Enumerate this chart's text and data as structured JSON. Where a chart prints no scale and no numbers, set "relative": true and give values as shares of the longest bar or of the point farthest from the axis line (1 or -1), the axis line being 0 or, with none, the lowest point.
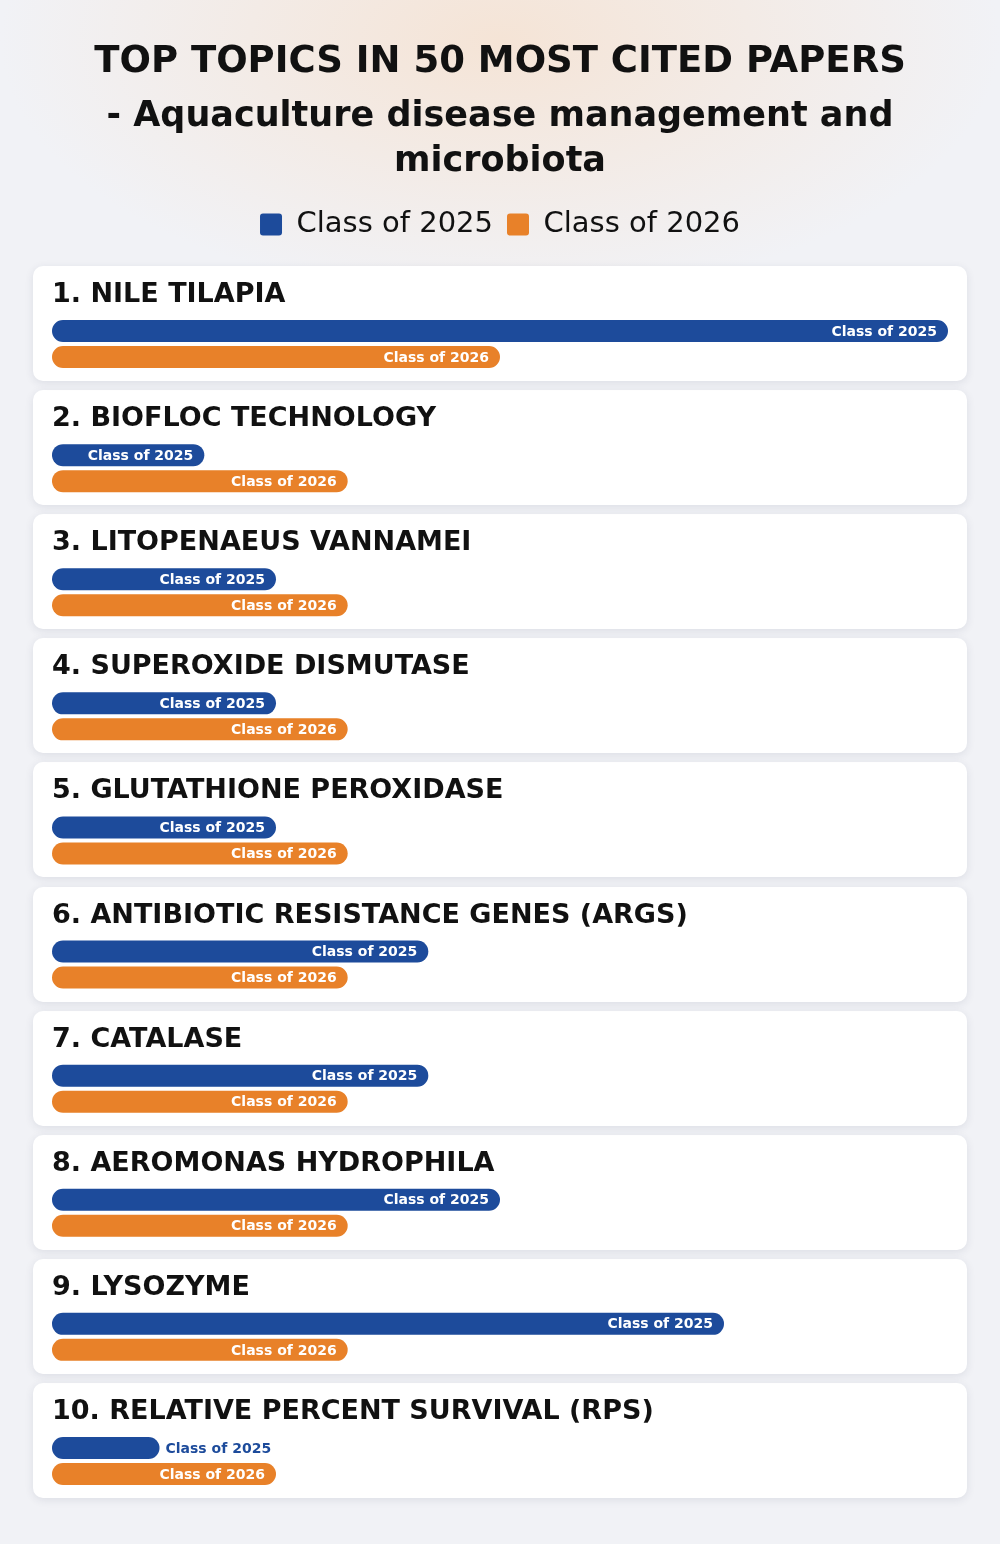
{
  "chart_data": {
    "type": "bar",
    "orientation": "horizontal",
    "relative": true,
    "title": "TOP TOPICS IN 50 MOST CITED PAPERS",
    "subtitle": "- Aquaculture disease management and microbiota",
    "categories": [
      "1. NILE TILAPIA",
      "2. BIOFLOC TECHNOLOGY",
      "3. LITOPENAEUS VANNAMEI",
      "4. SUPEROXIDE DISMUTASE",
      "5. GLUTATHIONE PEROXIDASE",
      "6. ANTIBIOTIC RESISTANCE GENES (ARGS)",
      "7. CATALASE",
      "8. AEROMONAS HYDROPHILA",
      "9. LYSOZYME",
      "10. RELATIVE PERCENT SURVIVAL (RPS)"
    ],
    "series": [
      {
        "name": "Class of 2025",
        "color": "#1d4b9b",
        "values": [
          1,
          0.17,
          0.25,
          0.25,
          0.25,
          0.42,
          0.42,
          0.5,
          0.75,
          0.12
        ]
      },
      {
        "name": "Class of 2026",
        "color": "#e88129",
        "values": [
          0.5,
          0.33,
          0.33,
          0.33,
          0.33,
          0.33,
          0.33,
          0.33,
          0.33,
          0.25
        ]
      }
    ],
    "legend": "top"
  }
}
